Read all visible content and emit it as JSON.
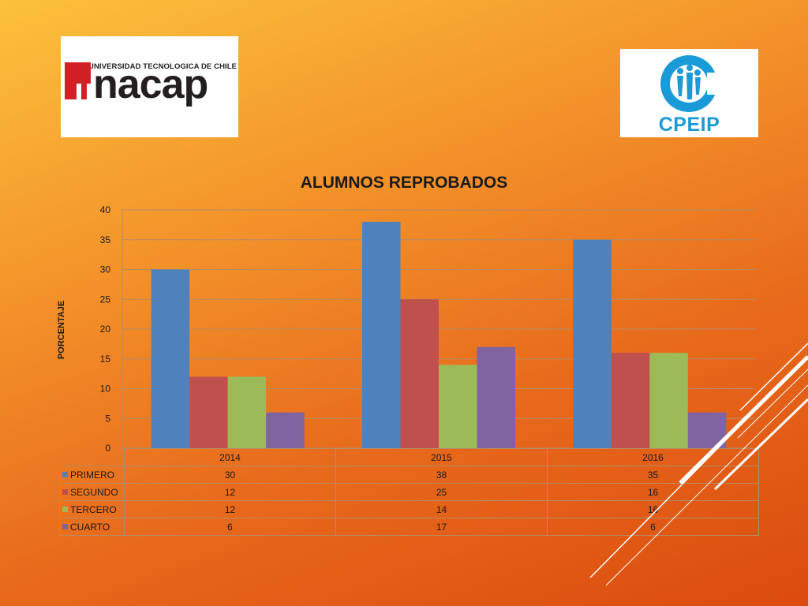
{
  "logos": {
    "inacap_tagline": "UNIVERSIDAD TECNOLOGICA DE CHILE",
    "inacap_name": "nacap",
    "cpeip_name": "CPEIP"
  },
  "colors": {
    "primero": "#4f81bd",
    "segundo": "#c0504d",
    "tercero": "#9bbb59",
    "cuarto": "#8064a2",
    "cpeip_blue": "#1a9ad7",
    "inacap_red": "#d22027"
  },
  "chart_data": {
    "type": "bar",
    "title": "ALUMNOS REPROBADOS",
    "xlabel": "",
    "ylabel": "PORCENTAJE",
    "categories": [
      "2014",
      "2015",
      "2016"
    ],
    "ylim": [
      0,
      40
    ],
    "yticks": [
      0,
      5,
      10,
      15,
      20,
      25,
      30,
      35,
      40
    ],
    "grid": true,
    "legend": "data-table",
    "series": [
      {
        "name": "PRIMERO",
        "values": [
          30,
          38,
          35
        ],
        "color": "#4f81bd"
      },
      {
        "name": "SEGUNDO",
        "values": [
          12,
          25,
          16
        ],
        "color": "#c0504d"
      },
      {
        "name": "TERCERO",
        "values": [
          12,
          14,
          16
        ],
        "color": "#9bbb59"
      },
      {
        "name": "CUARTO",
        "values": [
          6,
          17,
          6
        ],
        "color": "#8064a2"
      }
    ]
  }
}
